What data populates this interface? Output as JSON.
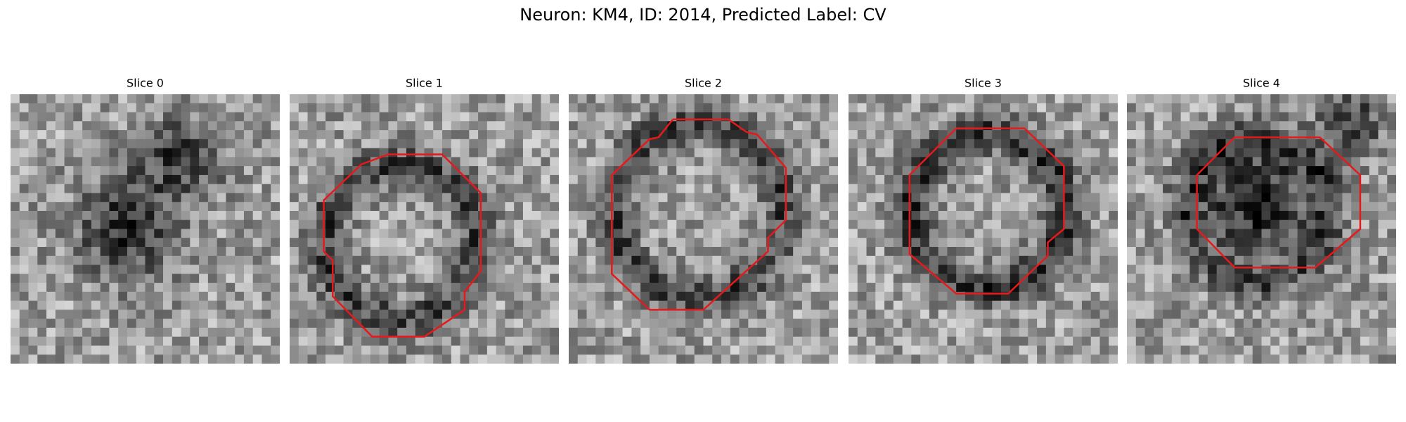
{
  "title": "Neuron: KM4, ID: 2014, Predicted Label: CV",
  "panels": [
    {
      "title": "Slice 0"
    },
    {
      "title": "Slice 1"
    },
    {
      "title": "Slice 2"
    },
    {
      "title": "Slice 3"
    },
    {
      "title": "Slice 4"
    }
  ]
}
